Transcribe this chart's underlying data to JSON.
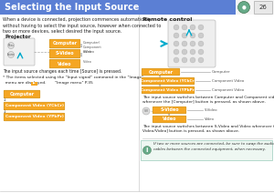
{
  "title": "Selecting the Input Source",
  "title_bg": "#5b7fd4",
  "title_fg": "#ffffff",
  "page_bg": "#f5f5f5",
  "page_num": "26",
  "body_text": "When a device is connected, projection commences automatically\nwithout having to select the input source, however when connected to\ntwo or more devices, select desired the input source.",
  "projector_label": "Projector",
  "source_label": "The input source changes each time [Source] is pressed.",
  "note_text1": "* The items selected using the \"Input signal\" command in the \"Image\"",
  "note_text2": "  menu are displayed.       \"Image menu\" P.35",
  "remote_label": "Remote control",
  "remote_text1": "The input source switches between Computer and Component video\nwhenever the [Computer] button is pressed, as shown above.",
  "remote_text2": "The input source switches between S-Video and Video whenever the [S-\nVideo/Video] button is pressed, as shown above.",
  "note_bottom": "If two or more sources are connected, be sure to swap the audio\ncables between the connected equipment, when necessary.",
  "orange": "#f5a623",
  "orange_dark": "#cc8800",
  "orange_text": "#ffffff",
  "btn_computer": "Computer",
  "btn_svideo": "S-Video",
  "btn_video": "Video",
  "btn_comp_ycbcr": "Component Video (YCbCr)",
  "btn_comp_ypbpr": "Component Video (YPbPr)",
  "arrow_color": "#00aacc",
  "line_color": "#aaaaaa",
  "text_color": "#222222",
  "divider_color": "#cccccc",
  "note_bg": "#eef7f2",
  "note_border": "#99ccbb",
  "icon_color": "#66aa88",
  "remote_bg": "#eeeeee",
  "remote_border": "#bbbbbb"
}
